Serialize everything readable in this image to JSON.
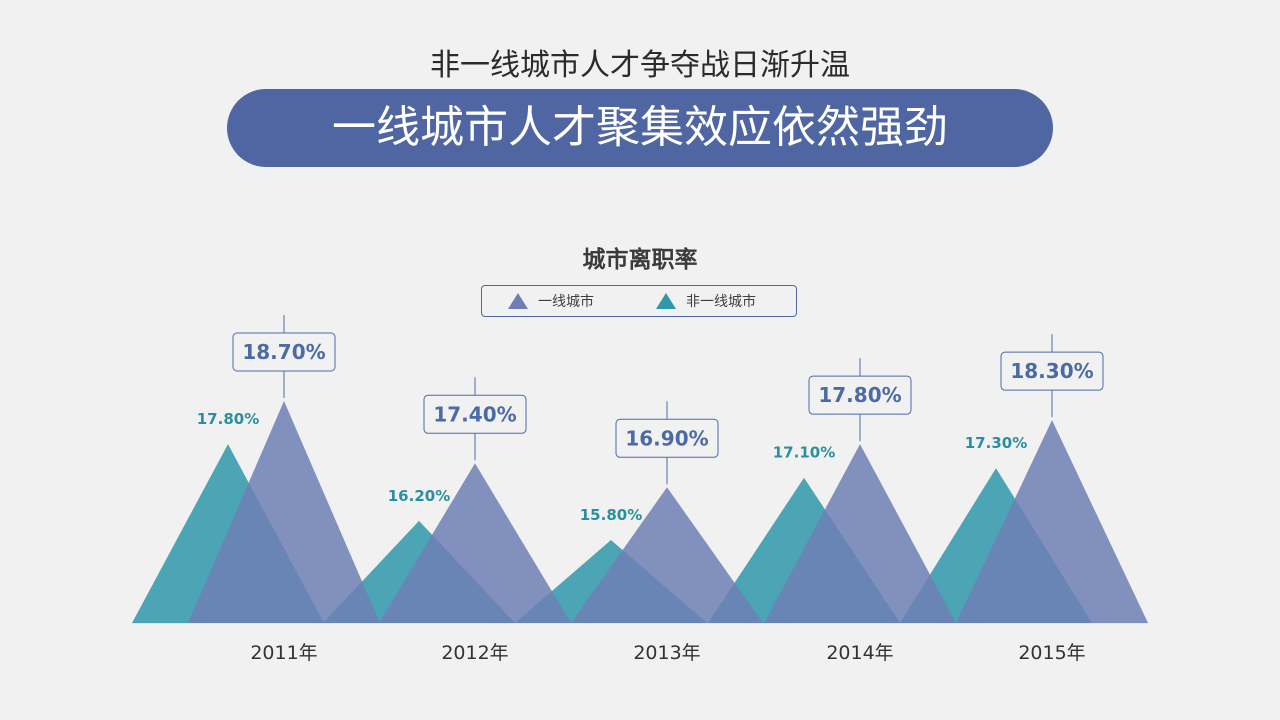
{
  "header": {
    "subtitle": "非一线城市人才争夺战日渐升温",
    "title": "一线城市人才聚集效应依然强劲"
  },
  "colors": {
    "tier1": "#6f7fb5",
    "non_tier1": "#2f98aa",
    "tier1_label": "#4c6aa6",
    "non_tier1_label": "#2c8fa0",
    "pill": "#4f66a3"
  },
  "chart_data": {
    "type": "area",
    "title": "城市离职率",
    "categories": [
      "2011年",
      "2012年",
      "2013年",
      "2014年",
      "2015年"
    ],
    "series": [
      {
        "name": "一线城市",
        "values": [
          18.7,
          17.4,
          16.9,
          17.8,
          18.3
        ],
        "labels": [
          "18.70%",
          "17.40%",
          "16.90%",
          "17.80%",
          "18.30%"
        ]
      },
      {
        "name": "非一线城市",
        "values": [
          17.8,
          16.2,
          15.8,
          17.1,
          17.3
        ],
        "labels": [
          "17.80%",
          "16.20%",
          "15.80%",
          "17.10%",
          "17.30%"
        ]
      }
    ],
    "legend_position": "top-center",
    "grid": false
  }
}
